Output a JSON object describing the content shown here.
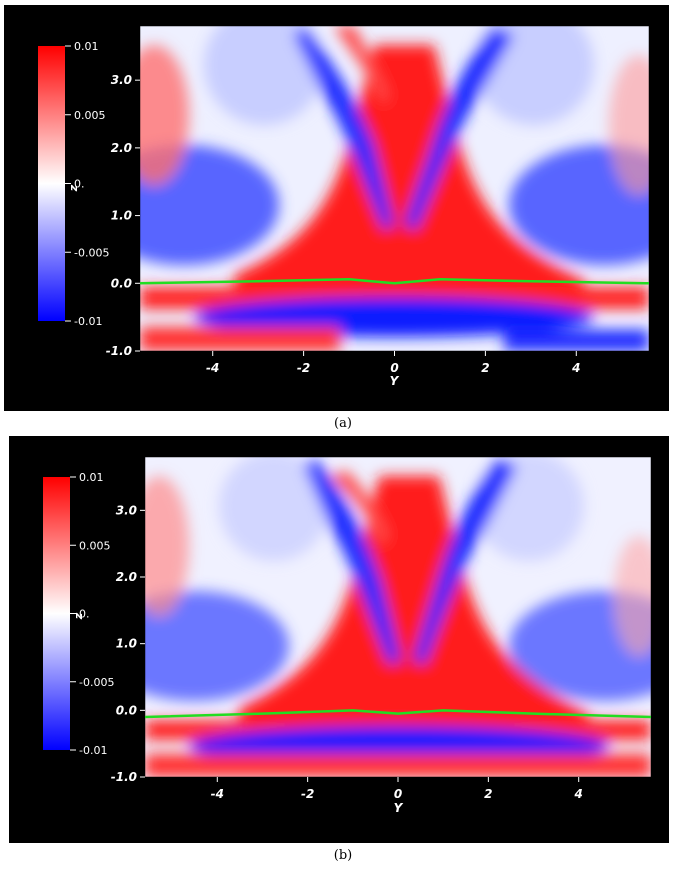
{
  "figure": {
    "captions": [
      "(a)",
      "(b)"
    ]
  },
  "colors": {
    "positive": "#ff0000",
    "zero": "#ffffff",
    "negative": "#0000ff",
    "interface_line": "#22dd22",
    "background": "#000000",
    "tick_label": "#ffffff"
  },
  "chart_data": [
    {
      "type": "heatmap",
      "panel": "(a)",
      "title": "",
      "xlabel": "Y",
      "ylabel": "",
      "xlim": [
        -5.6,
        5.6
      ],
      "ylim": [
        -1.0,
        3.8
      ],
      "x_ticks": [
        -4,
        -2,
        0,
        2,
        4
      ],
      "x_tick_labels": [
        "-4",
        "-2",
        "0",
        "2",
        "4"
      ],
      "y_ticks": [
        -1.0,
        0.0,
        1.0,
        2.0,
        3.0
      ],
      "y_tick_labels": [
        "-1.0",
        "0.0",
        "1.0",
        "2.0",
        "3.0"
      ],
      "colorbar": {
        "label": "z",
        "range": [
          -0.01,
          0.01
        ],
        "ticks": [
          0.01,
          0.005,
          0,
          -0.005,
          -0.01
        ],
        "tick_labels": [
          "0.01",
          "0.005",
          "0.",
          "-0.005",
          "-0.01"
        ]
      },
      "interface_line": {
        "x": [
          -5.6,
          -3,
          -1,
          0,
          1,
          3,
          5.6
        ],
        "z": [
          0.0,
          0.03,
          0.06,
          0.0,
          0.06,
          0.03,
          0.0
        ]
      }
    },
    {
      "type": "heatmap",
      "panel": "(b)",
      "title": "",
      "xlabel": "Y",
      "ylabel": "",
      "xlim": [
        -5.6,
        5.6
      ],
      "ylim": [
        -1.0,
        3.8
      ],
      "x_ticks": [
        -4,
        -2,
        0,
        2,
        4
      ],
      "x_tick_labels": [
        "-4",
        "-2",
        "0",
        "2",
        "4"
      ],
      "y_ticks": [
        -1.0,
        0.0,
        1.0,
        2.0,
        3.0
      ],
      "y_tick_labels": [
        "-1.0",
        "0.0",
        "1.0",
        "2.0",
        "3.0"
      ],
      "colorbar": {
        "label": "z",
        "range": [
          -0.01,
          0.01
        ],
        "ticks": [
          0.01,
          0.005,
          0,
          -0.005,
          -0.01
        ],
        "tick_labels": [
          "0.01",
          "0.005",
          "0.",
          "-0.005",
          "-0.01"
        ]
      },
      "interface_line": {
        "x": [
          -5.6,
          -3,
          -1,
          0,
          1,
          3,
          5.6
        ],
        "z": [
          -0.1,
          -0.05,
          0.0,
          -0.05,
          0.0,
          -0.05,
          -0.1
        ]
      }
    }
  ]
}
